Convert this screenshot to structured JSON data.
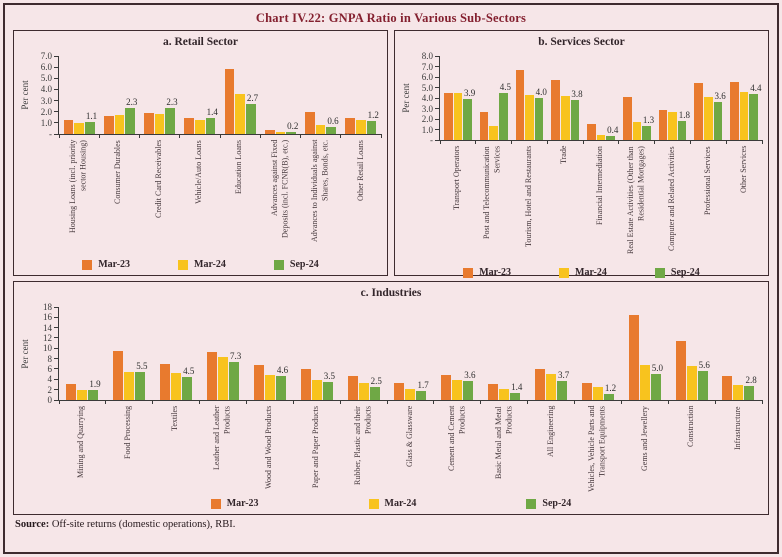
{
  "title": "Chart IV.22: GNPA Ratio in Various Sub-Sectors",
  "legend": [
    {
      "label": "Mar-23",
      "color": "#e87a2e"
    },
    {
      "label": "Mar-24",
      "color": "#f8c31e"
    },
    {
      "label": "Sep-24",
      "color": "#6fa845"
    }
  ],
  "source": {
    "label": "Source:",
    "text": " Off-site returns (domestic operations), RBI."
  },
  "chart_data": [
    {
      "id": "retail",
      "type": "bar",
      "title": "a. Retail Sector",
      "ylabel": "Per cent",
      "ymax": 7.0,
      "yticks": [
        "7.0",
        "6.0",
        "5.0",
        "4.0",
        "3.0",
        "2.0",
        "1.0",
        "-"
      ],
      "grid": false,
      "legend_position": "bottom",
      "categories": [
        "Housing Loans (incl. priority sector Housing)",
        "Consumer Durables",
        "Credit Card Receivables",
        "Vehicle/Auto Loans",
        "Education Loans",
        "Advances against Fixed Deposits (incl. FCNR(B), etc.)",
        "Advances to Individuals against Shares, Bonds, etc.",
        "Other Retail Loans"
      ],
      "series": [
        {
          "name": "Mar-23",
          "values": [
            1.3,
            1.6,
            1.9,
            1.4,
            5.8,
            0.4,
            2.0,
            1.4
          ]
        },
        {
          "name": "Mar-24",
          "values": [
            1.0,
            1.7,
            1.8,
            1.3,
            3.6,
            0.2,
            0.8,
            1.3
          ]
        },
        {
          "name": "Sep-24",
          "values": [
            1.1,
            2.3,
            2.3,
            1.4,
            2.7,
            0.2,
            0.6,
            1.2
          ]
        }
      ],
      "bar_labels_series": "Sep-24",
      "bar_labels": [
        "1.1",
        "2.3",
        "2.3",
        "1.4",
        "2.7",
        "0.2",
        "0.6",
        "1.2"
      ]
    },
    {
      "id": "services",
      "type": "bar",
      "title": "b. Services Sector",
      "ylabel": "Per cent",
      "ymax": 8.0,
      "yticks": [
        "8.0",
        "7.0",
        "6.0",
        "5.0",
        "4.0",
        "3.0",
        "2.0",
        "1.0",
        "-"
      ],
      "grid": false,
      "legend_position": "bottom",
      "categories": [
        "Transport Operators",
        "Post and Telecommunication Services",
        "Tourism, Hotel and Restaurants",
        "Trade",
        "Financial Intermediation",
        "Real Estate Activities (Other than Residential Mortgages)",
        "Computer and Related Activities",
        "Professional Services",
        "Other Services"
      ],
      "series": [
        {
          "name": "Mar-23",
          "values": [
            4.5,
            2.7,
            6.7,
            5.7,
            1.5,
            4.1,
            2.9,
            5.4,
            5.5
          ]
        },
        {
          "name": "Mar-24",
          "values": [
            4.5,
            1.3,
            4.3,
            4.2,
            0.5,
            1.7,
            2.7,
            4.1,
            4.6
          ]
        },
        {
          "name": "Sep-24",
          "values": [
            3.9,
            4.5,
            4.0,
            3.8,
            0.4,
            1.3,
            1.8,
            3.6,
            4.4
          ]
        }
      ],
      "bar_labels_series": "Sep-24",
      "bar_labels": [
        "3.9",
        "4.5",
        "4.0",
        "3.8",
        "0.4",
        "1.3",
        "1.8",
        "3.6",
        "4.4"
      ]
    },
    {
      "id": "industries",
      "type": "bar",
      "title": "c. Industries",
      "ylabel": "Per cent",
      "ymax": 18,
      "yticks": [
        "18",
        "16",
        "14",
        "12",
        "10",
        "8",
        "6",
        "4",
        "2",
        "0"
      ],
      "grid": false,
      "legend_position": "bottom",
      "categories": [
        "Mining and Quarrying",
        "Food Processing",
        "Textiles",
        "Leather and Leather Products",
        "Wood and Wood Products",
        "Paper and Paper Products",
        "Rubber, Plastic and their Products",
        "Glass & Glassware",
        "Cement and Cement Products",
        "Basic Metal and Metal Products",
        "All Engineering",
        "Vehicles, Vehicle Parts and Transport Equipments",
        "Gems and Jewellery",
        "Construction",
        "Infrastructure"
      ],
      "series": [
        {
          "name": "Mar-23",
          "values": [
            3.1,
            9.5,
            7.0,
            9.3,
            6.7,
            6.0,
            4.7,
            3.2,
            4.9,
            3.1,
            6.0,
            3.3,
            16.5,
            11.5,
            4.6
          ]
        },
        {
          "name": "Mar-24",
          "values": [
            2.0,
            5.5,
            5.2,
            8.3,
            4.9,
            3.9,
            3.2,
            2.2,
            3.9,
            2.1,
            5.0,
            2.6,
            6.8,
            6.5,
            2.9
          ]
        },
        {
          "name": "Sep-24",
          "values": [
            1.9,
            5.5,
            4.5,
            7.3,
            4.6,
            3.5,
            2.5,
            1.7,
            3.6,
            1.4,
            3.7,
            1.2,
            5.0,
            5.6,
            2.8
          ]
        }
      ],
      "bar_labels_series": "Sep-24",
      "bar_labels": [
        "1.9",
        "5.5",
        "4.5",
        "7.3",
        "4.6",
        "3.5",
        "2.5",
        "1.7",
        "3.6",
        "1.4",
        "3.7",
        "1.2",
        "5.0",
        "5.6",
        "2.8"
      ]
    }
  ]
}
